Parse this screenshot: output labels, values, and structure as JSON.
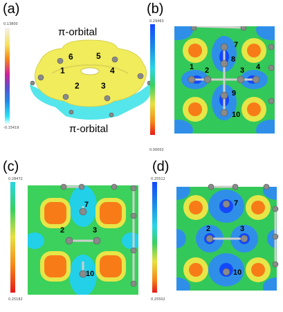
{
  "panels": {
    "a": {
      "label": "(a)",
      "top_text": "π-orbital",
      "bottom_text": "π-orbital",
      "bar_top": "0.13800",
      "bar_bottom": "-0.15419",
      "atoms": [
        "1",
        "2",
        "3",
        "4",
        "5",
        "6"
      ]
    },
    "b": {
      "label": "(b)",
      "bar_top": "0.29463",
      "bar_bottom": "0.00002",
      "atoms": [
        "1",
        "2",
        "3",
        "4",
        "7",
        "8",
        "9",
        "10"
      ]
    },
    "c": {
      "label": "(c)",
      "bar_top": "0.28472",
      "bar_bottom": "0.25182",
      "atoms": [
        "7",
        "2",
        "3",
        "10"
      ]
    },
    "d": {
      "label": "(d)",
      "bar_top": "0.25512",
      "bar_bottom": "0.25502",
      "atoms": [
        "7",
        "2",
        "3",
        "10"
      ]
    }
  },
  "colors": {
    "yellow": "#f0ec5c",
    "cyan": "#54e6ea",
    "orange": "#f77c18",
    "green_bg": "#33c85a",
    "blue": "#1464ff"
  }
}
